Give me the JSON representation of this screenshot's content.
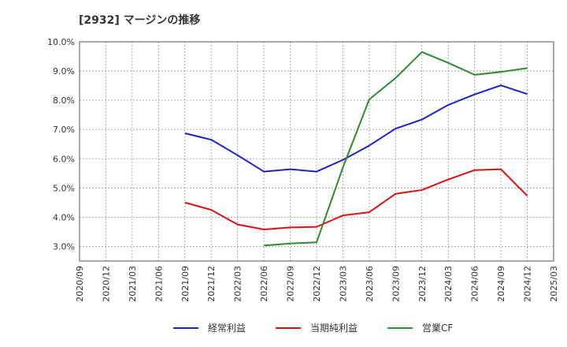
{
  "chart_data": {
    "type": "line",
    "title": "[2932]  マージンの推移",
    "xlabel": "",
    "ylabel": "",
    "categories": [
      "2020/09",
      "2020/12",
      "2021/03",
      "2021/06",
      "2021/09",
      "2021/12",
      "2022/03",
      "2022/06",
      "2022/09",
      "2022/12",
      "2023/03",
      "2023/06",
      "2023/09",
      "2023/12",
      "2024/03",
      "2024/06",
      "2024/09",
      "2024/12",
      "2025/03"
    ],
    "yticks": [
      "3.0%",
      "4.0%",
      "5.0%",
      "6.0%",
      "7.0%",
      "8.0%",
      "9.0%",
      "10.0%"
    ],
    "ylim": [
      2.5,
      10.0
    ],
    "grid": true,
    "legend_position": "bottom",
    "series": [
      {
        "name": "経常利益",
        "color": "#1f1fd1",
        "values": [
          null,
          null,
          null,
          null,
          6.87,
          6.65,
          6.12,
          5.56,
          5.64,
          5.56,
          5.96,
          6.45,
          7.03,
          7.34,
          7.84,
          8.2,
          8.51,
          8.21,
          null
        ]
      },
      {
        "name": "当期純利益",
        "color": "#e01010",
        "values": [
          null,
          null,
          null,
          null,
          4.5,
          4.25,
          3.75,
          3.58,
          3.65,
          3.67,
          4.06,
          4.17,
          4.8,
          4.93,
          5.29,
          5.61,
          5.64,
          4.73,
          null
        ]
      },
      {
        "name": "営業CF",
        "color": "#2e8b2e",
        "values": [
          null,
          null,
          null,
          null,
          null,
          null,
          null,
          3.03,
          3.1,
          3.14,
          5.7,
          8.03,
          8.76,
          9.65,
          9.28,
          8.87,
          8.97,
          9.1,
          null
        ]
      }
    ]
  }
}
